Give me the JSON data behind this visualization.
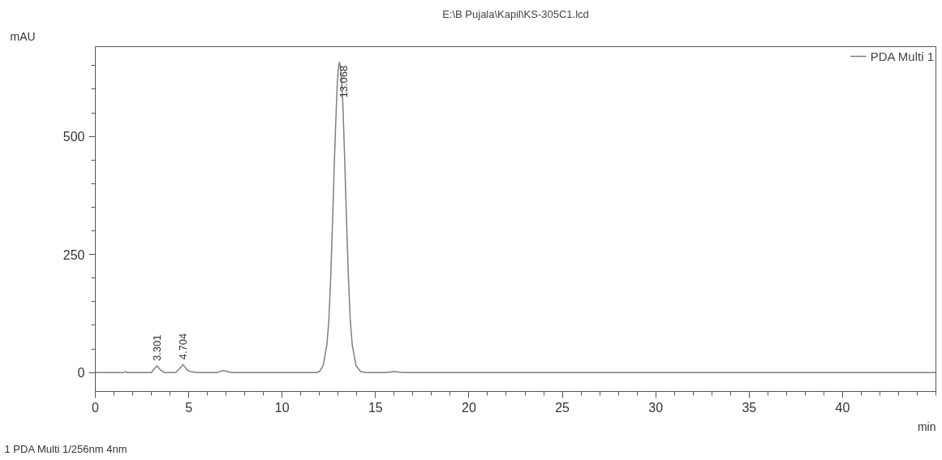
{
  "chart_data": {
    "type": "line",
    "title": "E:\\B Pujala\\Kapil\\KS-305C1.lcd",
    "xlabel": "min",
    "ylabel": "mAU",
    "xlim": [
      0,
      45
    ],
    "ylim": [
      -40,
      690
    ],
    "xticks": [
      0,
      5,
      10,
      15,
      20,
      25,
      30,
      35,
      40
    ],
    "yticks": [
      0,
      250,
      500
    ],
    "grid": false,
    "legend": "top right",
    "line_style": "solid",
    "series": [
      {
        "name": "PDA Multi 1",
        "color": "#7f7f7f",
        "x": [
          0,
          1.5,
          1.6,
          1.7,
          3.0,
          3.15,
          3.3,
          3.5,
          3.7,
          4.3,
          4.5,
          4.7,
          4.9,
          5.1,
          5.5,
          6.5,
          6.8,
          7.0,
          7.3,
          11.8,
          12.0,
          12.2,
          12.4,
          12.5,
          12.6,
          12.7,
          12.8,
          12.9,
          12.95,
          13.0,
          13.068,
          13.13,
          13.2,
          13.25,
          13.35,
          13.45,
          13.55,
          13.65,
          13.75,
          13.95,
          14.2,
          14.5,
          15.5,
          16.0,
          16.5,
          45
        ],
        "values": [
          0,
          0,
          2,
          0,
          0,
          8,
          14,
          5,
          0,
          0,
          8,
          17,
          6,
          2,
          0,
          0,
          4,
          3,
          0,
          0,
          2,
          15,
          60,
          110,
          200,
          320,
          450,
          560,
          610,
          640,
          657,
          645,
          610,
          570,
          450,
          320,
          200,
          110,
          60,
          15,
          2,
          0,
          0,
          2,
          0,
          0
        ]
      }
    ],
    "annotations": [
      {
        "text": "3.301",
        "x": 3.301,
        "y": 14
      },
      {
        "text": "4.704",
        "x": 4.704,
        "y": 17
      },
      {
        "text": "13.068",
        "x": 13.068,
        "y": 657
      },
      "1  PDA Multi 1/256nm 4nm"
    ]
  }
}
